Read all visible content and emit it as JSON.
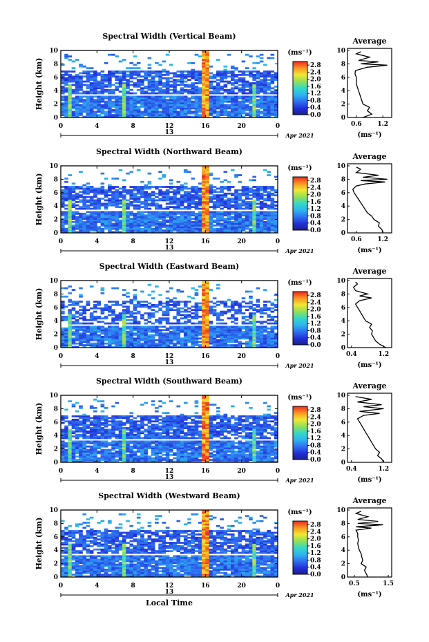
{
  "chart_data": [
    {
      "type": "heatmap",
      "title": "Spectral Width (Vertical Beam)",
      "ylabel": "Height (km)",
      "xlim": [
        0,
        24
      ],
      "ylim": [
        0,
        10
      ],
      "x_ticks": [
        "0",
        "4",
        "8",
        "12",
        "16",
        "20",
        "0"
      ],
      "y_ticks": [
        "0",
        "2",
        "4",
        "6",
        "8",
        "10"
      ],
      "day_label": "13",
      "date_label": "Apr 2021",
      "colorbar": {
        "unit": "(ms⁻¹)",
        "ticks": [
          "0.0",
          "0.4",
          "0.8",
          "1.2",
          "1.6",
          "2.0",
          "2.4",
          "2.8"
        ],
        "range": [
          0,
          3.0
        ]
      },
      "average": {
        "title": "Average",
        "xlabel": "(ms⁻¹)",
        "x_ticks": [
          "0.6",
          "1.2"
        ],
        "xlim": [
          0.4,
          1.4
        ],
        "y_ticks": [
          "0",
          "2",
          "4",
          "6",
          "8",
          "10"
        ],
        "profile": [
          [
            0.0,
            0.75
          ],
          [
            0.5,
            0.95
          ],
          [
            1.0,
            0.85
          ],
          [
            1.5,
            0.9
          ],
          [
            2.0,
            0.75
          ],
          [
            3.0,
            0.7
          ],
          [
            4.0,
            0.65
          ],
          [
            5.0,
            0.6
          ],
          [
            6.0,
            0.6
          ],
          [
            6.5,
            0.57
          ],
          [
            7.0,
            0.58
          ],
          [
            7.5,
            0.85
          ],
          [
            7.8,
            1.3
          ],
          [
            8.0,
            0.7
          ],
          [
            8.3,
            1.1
          ],
          [
            8.5,
            0.65
          ],
          [
            9.0,
            0.9
          ],
          [
            9.5,
            0.6
          ],
          [
            9.8,
            0.7
          ]
        ]
      }
    },
    {
      "type": "heatmap",
      "title": "Spectral Width (Northward Beam)",
      "ylabel": "Height (km)",
      "xlim": [
        0,
        24
      ],
      "ylim": [
        0,
        10
      ],
      "x_ticks": [
        "0",
        "4",
        "8",
        "12",
        "16",
        "20",
        "0"
      ],
      "y_ticks": [
        "0",
        "2",
        "4",
        "6",
        "8",
        "10"
      ],
      "day_label": "13",
      "date_label": "Apr 2021",
      "colorbar": {
        "unit": "(ms⁻¹)",
        "ticks": [
          "0.0",
          "0.4",
          "0.8",
          "1.2",
          "1.6",
          "2.0",
          "2.4",
          "2.8"
        ],
        "range": [
          0,
          3.0
        ]
      },
      "average": {
        "title": "Average",
        "xlabel": "(ms⁻¹)",
        "x_ticks": [
          "0.6",
          "1.2"
        ],
        "xlim": [
          0.4,
          1.4
        ],
        "y_ticks": [
          "0",
          "2",
          "4",
          "6",
          "8",
          "10"
        ],
        "profile": [
          [
            0.0,
            1.2
          ],
          [
            0.5,
            1.18
          ],
          [
            1.0,
            1.1
          ],
          [
            1.5,
            1.12
          ],
          [
            2.0,
            1.0
          ],
          [
            2.5,
            0.95
          ],
          [
            3.0,
            0.85
          ],
          [
            3.5,
            0.8
          ],
          [
            4.0,
            0.75
          ],
          [
            4.5,
            0.7
          ],
          [
            5.0,
            0.65
          ],
          [
            5.5,
            0.6
          ],
          [
            6.0,
            0.55
          ],
          [
            6.5,
            0.52
          ],
          [
            7.0,
            0.6
          ],
          [
            7.3,
            0.8
          ],
          [
            7.6,
            1.25
          ],
          [
            7.8,
            0.7
          ],
          [
            8.0,
            1.3
          ],
          [
            8.3,
            0.75
          ],
          [
            8.6,
            1.1
          ],
          [
            9.0,
            0.6
          ],
          [
            9.5,
            0.7
          ],
          [
            9.8,
            0.6
          ]
        ]
      }
    },
    {
      "type": "heatmap",
      "title": "Spectral Width (Eastward Beam)",
      "ylabel": "Height (km)",
      "xlim": [
        0,
        24
      ],
      "ylim": [
        0,
        10
      ],
      "x_ticks": [
        "0",
        "4",
        "8",
        "12",
        "16",
        "20",
        "0"
      ],
      "y_ticks": [
        "0",
        "2",
        "4",
        "6",
        "8",
        "10"
      ],
      "day_label": "13",
      "date_label": "Apr 2021",
      "colorbar": {
        "unit": "(ms⁻¹)",
        "ticks": [
          "0.0",
          "0.4",
          "0.8",
          "1.2",
          "1.6",
          "2.0",
          "2.4",
          "2.8"
        ],
        "range": [
          0,
          3.0
        ]
      },
      "average": {
        "title": "Average",
        "xlabel": "(ms⁻¹)",
        "x_ticks": [
          "0.4",
          "1.2"
        ],
        "xlim": [
          0.3,
          1.4
        ],
        "y_ticks": [
          "0",
          "2",
          "4",
          "6",
          "8",
          "10"
        ],
        "profile": [
          [
            0.0,
            1.25
          ],
          [
            0.5,
            1.1
          ],
          [
            1.0,
            1.0
          ],
          [
            1.5,
            0.95
          ],
          [
            2.0,
            0.9
          ],
          [
            2.5,
            0.92
          ],
          [
            3.0,
            0.85
          ],
          [
            3.5,
            0.9
          ],
          [
            4.0,
            0.75
          ],
          [
            4.5,
            0.7
          ],
          [
            5.0,
            0.65
          ],
          [
            5.5,
            0.6
          ],
          [
            6.0,
            0.55
          ],
          [
            6.5,
            0.5
          ],
          [
            7.0,
            0.6
          ],
          [
            7.4,
            0.9
          ],
          [
            7.7,
            0.6
          ],
          [
            8.0,
            0.8
          ],
          [
            8.5,
            0.5
          ],
          [
            9.0,
            0.45
          ],
          [
            9.5,
            0.55
          ],
          [
            9.8,
            0.5
          ]
        ]
      }
    },
    {
      "type": "heatmap",
      "title": "Spectral Width (Southward Beam)",
      "ylabel": "Height (km)",
      "xlim": [
        0,
        24
      ],
      "ylim": [
        0,
        10
      ],
      "x_ticks": [
        "0",
        "4",
        "8",
        "12",
        "16",
        "20",
        "0"
      ],
      "y_ticks": [
        "0",
        "2",
        "4",
        "6",
        "8",
        "10"
      ],
      "day_label": "13",
      "date_label": "Apr 2021",
      "colorbar": {
        "unit": "(ms⁻¹)",
        "ticks": [
          "0.0",
          "0.4",
          "0.8",
          "1.2",
          "1.6",
          "2.0",
          "2.4",
          "2.8"
        ],
        "range": [
          0,
          3.0
        ]
      },
      "average": {
        "title": "Average",
        "xlabel": "(ms⁻¹)",
        "x_ticks": [
          "0.4",
          "1.2"
        ],
        "xlim": [
          0.3,
          1.4
        ],
        "y_ticks": [
          "0",
          "2",
          "4",
          "6",
          "8",
          "10"
        ],
        "profile": [
          [
            0.0,
            1.2
          ],
          [
            0.5,
            1.15
          ],
          [
            1.0,
            1.05
          ],
          [
            1.5,
            1.1
          ],
          [
            2.0,
            1.0
          ],
          [
            2.5,
            0.95
          ],
          [
            3.0,
            0.9
          ],
          [
            3.5,
            0.85
          ],
          [
            4.0,
            0.8
          ],
          [
            4.5,
            0.75
          ],
          [
            5.0,
            0.7
          ],
          [
            5.5,
            0.65
          ],
          [
            6.0,
            0.6
          ],
          [
            6.5,
            0.55
          ],
          [
            7.0,
            0.7
          ],
          [
            7.3,
            1.1
          ],
          [
            7.6,
            0.6
          ],
          [
            8.0,
            1.2
          ],
          [
            8.3,
            0.7
          ],
          [
            8.6,
            1.15
          ],
          [
            9.0,
            0.55
          ],
          [
            9.4,
            0.9
          ],
          [
            9.8,
            0.5
          ]
        ]
      }
    },
    {
      "type": "heatmap",
      "title": "Spectral Width (Westward Beam)",
      "ylabel": "Height (km)",
      "xlabel": "Local Time",
      "xlim": [
        0,
        24
      ],
      "ylim": [
        0,
        10
      ],
      "x_ticks": [
        "0",
        "4",
        "8",
        "12",
        "16",
        "20",
        "0"
      ],
      "y_ticks": [
        "0",
        "2",
        "4",
        "6",
        "8",
        "10"
      ],
      "day_label": "13",
      "date_label": "Apr 2021",
      "colorbar": {
        "unit": "(ms⁻¹)",
        "ticks": [
          "0.0",
          "0.4",
          "0.8",
          "1.2",
          "1.6",
          "2.0",
          "2.4",
          "2.8"
        ],
        "range": [
          0,
          3.0
        ]
      },
      "average": {
        "title": "Average",
        "xlabel": "(ms⁻¹)",
        "x_ticks": [
          "0.5",
          "1.5"
        ],
        "xlim": [
          0.3,
          1.6
        ],
        "y_ticks": [
          "0",
          "2",
          "4",
          "6",
          "8",
          "10"
        ],
        "profile": [
          [
            0.0,
            0.9
          ],
          [
            0.5,
            0.85
          ],
          [
            1.0,
            0.8
          ],
          [
            1.5,
            0.85
          ],
          [
            2.0,
            0.7
          ],
          [
            2.5,
            0.75
          ],
          [
            3.0,
            0.72
          ],
          [
            3.5,
            0.7
          ],
          [
            4.0,
            0.65
          ],
          [
            4.5,
            0.62
          ],
          [
            5.0,
            0.6
          ],
          [
            5.5,
            0.62
          ],
          [
            6.0,
            0.6
          ],
          [
            6.5,
            0.6
          ],
          [
            7.0,
            0.55
          ],
          [
            7.3,
            1.0
          ],
          [
            7.5,
            0.55
          ],
          [
            7.8,
            1.35
          ],
          [
            8.0,
            0.6
          ],
          [
            8.3,
            1.2
          ],
          [
            8.6,
            0.6
          ],
          [
            9.0,
            0.9
          ],
          [
            9.5,
            0.55
          ],
          [
            9.8,
            0.7
          ]
        ]
      }
    }
  ]
}
